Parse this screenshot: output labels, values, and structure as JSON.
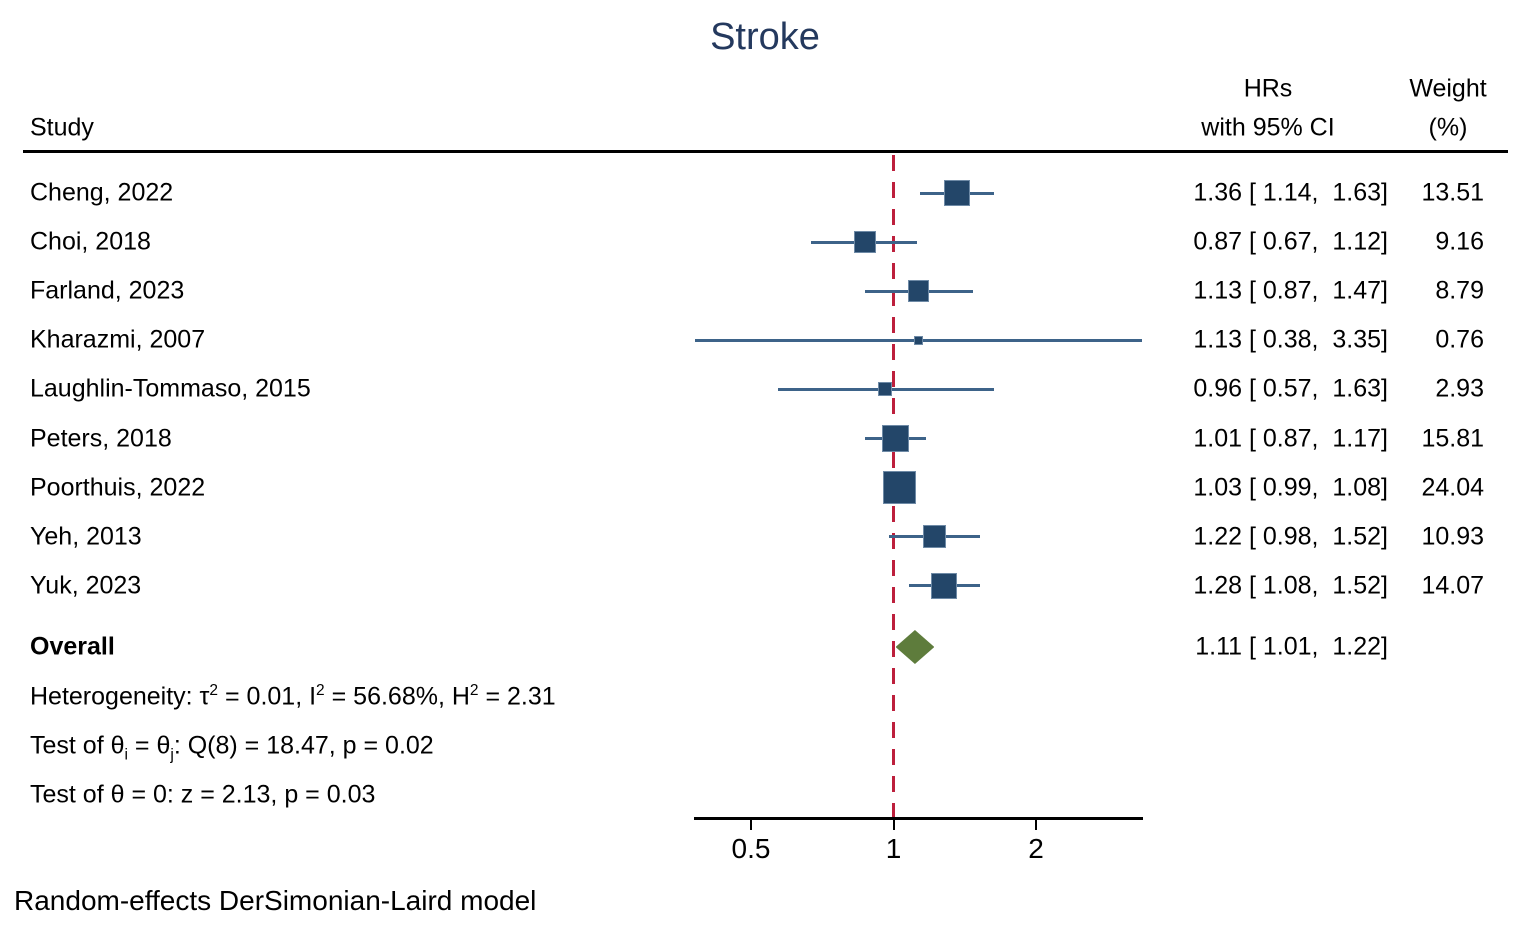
{
  "title": "Stroke",
  "columns": {
    "study": "Study",
    "effect_line1": "HRs",
    "effect_line2": "with 95% CI",
    "weight_line1": "Weight",
    "weight_line2": "(%)"
  },
  "footer": "Random-effects DerSimonian-Laird model",
  "colors": {
    "title": "#24395e",
    "marker": "#234669",
    "ci_line": "#3d6389",
    "null_line": "#bd1f3c",
    "diamond": "#5e7c3c",
    "axis": "#000000"
  },
  "chart_data": {
    "type": "forest",
    "x_scale": "log",
    "x_axis_range": [
      0.38,
      3.35
    ],
    "null_line_at": 1,
    "x_ticks": [
      {
        "value": 0.5,
        "label": "0.5"
      },
      {
        "value": 1,
        "label": "1"
      },
      {
        "value": 2,
        "label": "2"
      }
    ],
    "studies": [
      {
        "label": "Cheng, 2022",
        "hr": 1.36,
        "ci_low": 1.14,
        "ci_high": 1.63,
        "weight": 13.51,
        "hr_ci_text": "1.36 [ 1.14,  1.63]",
        "weight_text": "13.51"
      },
      {
        "label": "Choi, 2018",
        "hr": 0.87,
        "ci_low": 0.67,
        "ci_high": 1.12,
        "weight": 9.16,
        "hr_ci_text": "0.87 [ 0.67,  1.12]",
        "weight_text": "9.16"
      },
      {
        "label": "Farland, 2023",
        "hr": 1.13,
        "ci_low": 0.87,
        "ci_high": 1.47,
        "weight": 8.79,
        "hr_ci_text": "1.13 [ 0.87,  1.47]",
        "weight_text": "8.79"
      },
      {
        "label": "Kharazmi, 2007",
        "hr": 1.13,
        "ci_low": 0.38,
        "ci_high": 3.35,
        "weight": 0.76,
        "hr_ci_text": "1.13 [ 0.38,  3.35]",
        "weight_text": "0.76"
      },
      {
        "label": "Laughlin-Tommaso, 2015",
        "hr": 0.96,
        "ci_low": 0.57,
        "ci_high": 1.63,
        "weight": 2.93,
        "hr_ci_text": "0.96 [ 0.57,  1.63]",
        "weight_text": "2.93"
      },
      {
        "label": "Peters, 2018",
        "hr": 1.01,
        "ci_low": 0.87,
        "ci_high": 1.17,
        "weight": 15.81,
        "hr_ci_text": "1.01 [ 0.87,  1.17]",
        "weight_text": "15.81"
      },
      {
        "label": "Poorthuis, 2022",
        "hr": 1.03,
        "ci_low": 0.99,
        "ci_high": 1.08,
        "weight": 24.04,
        "hr_ci_text": "1.03 [ 0.99,  1.08]",
        "weight_text": "24.04"
      },
      {
        "label": "Yeh, 2013",
        "hr": 1.22,
        "ci_low": 0.98,
        "ci_high": 1.52,
        "weight": 10.93,
        "hr_ci_text": "1.22 [ 0.98,  1.52]",
        "weight_text": "10.93"
      },
      {
        "label": "Yuk, 2023",
        "hr": 1.28,
        "ci_low": 1.08,
        "ci_high": 1.52,
        "weight": 14.07,
        "hr_ci_text": "1.28 [ 1.08,  1.52]",
        "weight_text": "14.07"
      }
    ],
    "overall": {
      "label": "Overall",
      "hr": 1.11,
      "ci_low": 1.01,
      "ci_high": 1.22,
      "hr_ci_text": "1.11 [ 1.01,  1.22]"
    },
    "stats_lines": [
      {
        "name": "heterogeneity",
        "segments": [
          {
            "t": "text",
            "v": "Heterogeneity: τ"
          },
          {
            "t": "sup",
            "v": "2"
          },
          {
            "t": "text",
            "v": " = 0.01, I"
          },
          {
            "t": "sup",
            "v": "2"
          },
          {
            "t": "text",
            "v": " = 56.68%, H"
          },
          {
            "t": "sup",
            "v": "2"
          },
          {
            "t": "text",
            "v": " = 2.31"
          }
        ]
      },
      {
        "name": "test-theta-i-j",
        "segments": [
          {
            "t": "text",
            "v": "Test of θ"
          },
          {
            "t": "sub",
            "v": "i"
          },
          {
            "t": "text",
            "v": " = θ"
          },
          {
            "t": "sub",
            "v": "j"
          },
          {
            "t": "text",
            "v": ": Q(8) = 18.47, p = 0.02"
          }
        ]
      },
      {
        "name": "test-theta-zero",
        "segments": [
          {
            "t": "text",
            "v": "Test of θ = 0: z = 2.13, p = 0.03"
          }
        ]
      }
    ]
  }
}
